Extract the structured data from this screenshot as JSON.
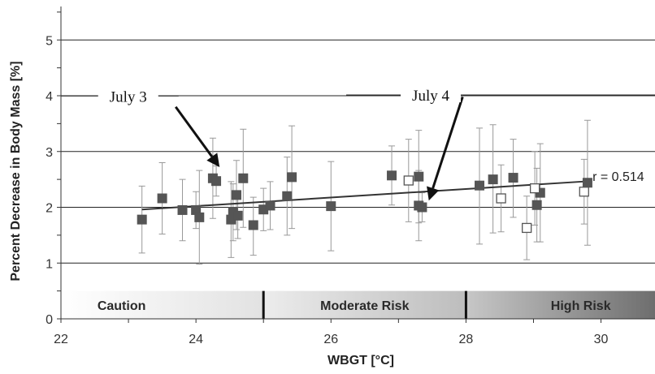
{
  "chart_data": {
    "type": "scatter",
    "xlabel": "WBGT  [°C]",
    "ylabel": "Percent Decrease in Body Mass [%]",
    "xlim": [
      22,
      30.8
    ],
    "ylim": [
      0,
      5.6
    ],
    "x_ticks": [
      "22",
      "24",
      "26",
      "28",
      "30"
    ],
    "y_ticks": [
      "0",
      "1",
      "2",
      "3",
      "4",
      "5"
    ],
    "grid": "horizontal",
    "series": [
      {
        "marker": "filled-square",
        "color": "#555555",
        "points": [
          {
            "x": 23.2,
            "y": 1.78,
            "err": [
              1.18,
              2.38
            ]
          },
          {
            "x": 23.5,
            "y": 2.16,
            "err": [
              1.52,
              2.8
            ]
          },
          {
            "x": 23.8,
            "y": 1.95,
            "err": [
              1.4,
              2.5
            ]
          },
          {
            "x": 24.0,
            "y": 1.95,
            "err": [
              1.62,
              2.28
            ]
          },
          {
            "x": 24.05,
            "y": 1.82,
            "err": [
              0.98,
              2.66
            ]
          },
          {
            "x": 24.25,
            "y": 2.52,
            "err": [
              1.8,
              3.24
            ]
          },
          {
            "x": 24.3,
            "y": 2.47,
            "err": [
              2.2,
              2.74
            ]
          },
          {
            "x": 24.52,
            "y": 1.78,
            "err": [
              1.1,
              2.46
            ]
          },
          {
            "x": 24.55,
            "y": 1.92,
            "err": [
              1.4,
              2.42
            ]
          },
          {
            "x": 24.6,
            "y": 2.22,
            "err": [
              1.6,
              2.84
            ]
          },
          {
            "x": 24.62,
            "y": 1.85,
            "err": [
              1.44,
              2.26
            ]
          },
          {
            "x": 24.7,
            "y": 2.52,
            "err": [
              1.64,
              3.4
            ]
          },
          {
            "x": 24.85,
            "y": 1.68,
            "err": [
              1.14,
              2.18
            ]
          },
          {
            "x": 25.0,
            "y": 1.96,
            "err": [
              1.58,
              2.34
            ]
          },
          {
            "x": 25.1,
            "y": 2.03,
            "err": [
              1.6,
              2.46
            ]
          },
          {
            "x": 25.35,
            "y": 2.2,
            "err": [
              1.5,
              2.9
            ]
          },
          {
            "x": 25.42,
            "y": 2.54,
            "err": [
              1.62,
              3.46
            ]
          },
          {
            "x": 26.0,
            "y": 2.02,
            "err": [
              1.22,
              2.82
            ]
          },
          {
            "x": 26.9,
            "y": 2.57,
            "err": [
              2.04,
              3.1
            ]
          },
          {
            "x": 27.3,
            "y": 2.55,
            "err": [
              1.72,
              3.38
            ]
          },
          {
            "x": 27.3,
            "y": 2.03,
            "err": [
              1.4,
              2.66
            ]
          },
          {
            "x": 27.35,
            "y": 2.0,
            "err": [
              1.74,
              2.26
            ]
          },
          {
            "x": 28.2,
            "y": 2.39,
            "err": [
              1.34,
              3.42
            ]
          },
          {
            "x": 28.4,
            "y": 2.5,
            "err": [
              1.54,
              3.48
            ]
          },
          {
            "x": 28.7,
            "y": 2.53,
            "err": [
              1.82,
              3.22
            ]
          },
          {
            "x": 29.05,
            "y": 2.04,
            "err": [
              1.38,
              2.7
            ]
          },
          {
            "x": 29.1,
            "y": 2.26,
            "err": [
              1.38,
              3.14
            ]
          },
          {
            "x": 29.8,
            "y": 2.44,
            "err": [
              1.32,
              3.56
            ]
          }
        ]
      },
      {
        "marker": "open-square",
        "color": "#555555",
        "points": [
          {
            "x": 27.15,
            "y": 2.48,
            "err": [
              1.74,
              3.22
            ]
          },
          {
            "x": 28.52,
            "y": 2.16,
            "err": [
              1.56,
              2.76
            ]
          },
          {
            "x": 28.9,
            "y": 1.63,
            "err": [
              1.06,
              2.2
            ]
          },
          {
            "x": 29.02,
            "y": 2.34,
            "err": [
              1.68,
              3.0
            ]
          },
          {
            "x": 29.75,
            "y": 2.28,
            "err": [
              1.7,
              2.86
            ]
          }
        ]
      }
    ],
    "trendline": {
      "x": [
        23.2,
        29.85
      ],
      "y": [
        1.96,
        2.47
      ],
      "label": "r = 0.514"
    },
    "annotations": [
      {
        "text": "July 3",
        "text_pos": [
          22.9,
          3.98
        ],
        "arrow_from": [
          23.7,
          3.8
        ],
        "arrow_to": [
          24.35,
          2.72
        ]
      },
      {
        "text": "July 4",
        "text_pos": [
          27.55,
          4.0
        ],
        "arrow_from": [
          27.95,
          3.98
        ],
        "arrow_to": [
          27.45,
          2.12
        ]
      }
    ],
    "risk_bands": [
      {
        "label": "Caution",
        "from": 22,
        "to": 25,
        "color_start": "#ffffff",
        "color_end": "#e2e2e2"
      },
      {
        "label": "Moderate Risk",
        "from": 25,
        "to": 28,
        "color_start": "#ececec",
        "color_end": "#bdbdbd"
      },
      {
        "label": "High Risk",
        "from": 28,
        "to": 30.8,
        "color_start": "#c7c7c7",
        "color_end": "#6e6e6e"
      }
    ]
  }
}
